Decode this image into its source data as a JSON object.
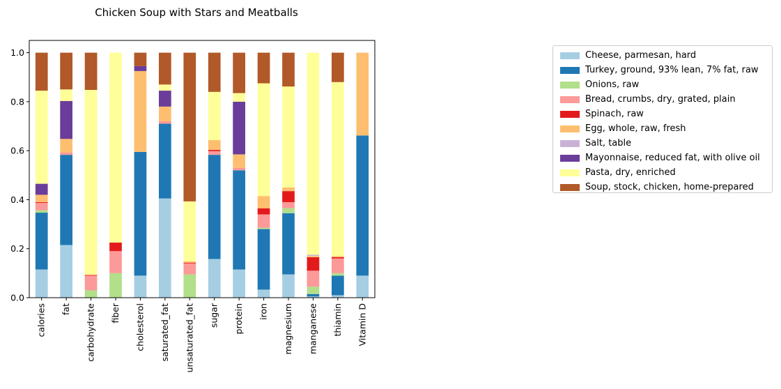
{
  "chart_data": {
    "type": "bar",
    "stacked": true,
    "title": "Chicken Soup with Stars and Meatballs",
    "xlabel": "",
    "ylabel": "",
    "ylim": [
      0,
      1.05
    ],
    "yticks": [
      "0.0",
      "0.2",
      "0.4",
      "0.6",
      "0.8",
      "1.0"
    ],
    "legend_position": "right",
    "categories": [
      "calories",
      "fat",
      "carbohydrate",
      "fiber",
      "cholesterol",
      "saturated_fat",
      "unsaturated_fat",
      "sugar",
      "protein",
      "iron",
      "magnesium",
      "manganese",
      "thiamin",
      "Vitamin D"
    ],
    "series": [
      {
        "name": "Cheese, parmesan, hard",
        "color": "#a6cee3",
        "values": [
          0.115,
          0.215,
          0.0,
          0.0,
          0.09,
          0.405,
          0.0,
          0.158,
          0.115,
          0.033,
          0.095,
          0.005,
          0.01,
          0.09
        ]
      },
      {
        "name": "Turkey, ground, 93% lean, 7% fat, raw",
        "color": "#1f78b4",
        "values": [
          0.232,
          0.368,
          0.0,
          0.0,
          0.505,
          0.305,
          0.0,
          0.425,
          0.405,
          0.247,
          0.25,
          0.01,
          0.08,
          0.572
        ]
      },
      {
        "name": "Onions, raw",
        "color": "#b2df8a",
        "values": [
          0.01,
          0.0,
          0.03,
          0.1,
          0.0,
          0.0,
          0.095,
          0.0,
          0.0,
          0.005,
          0.02,
          0.03,
          0.01,
          0.0
        ]
      },
      {
        "name": "Bread, crumbs, dry, grated, plain",
        "color": "#fb9a99",
        "values": [
          0.03,
          0.01,
          0.06,
          0.09,
          0.0,
          0.01,
          0.045,
          0.015,
          0.01,
          0.055,
          0.025,
          0.065,
          0.06,
          0.0
        ]
      },
      {
        "name": "Spinach, raw",
        "color": "#e31a1c",
        "values": [
          0.003,
          0.0,
          0.003,
          0.035,
          0.0,
          0.0,
          0.003,
          0.005,
          0.0,
          0.025,
          0.045,
          0.055,
          0.005,
          0.0
        ]
      },
      {
        "name": "Egg, whole, raw, fresh",
        "color": "#fdbf6f",
        "values": [
          0.03,
          0.055,
          0.0,
          0.0,
          0.33,
          0.06,
          0.005,
          0.04,
          0.055,
          0.05,
          0.015,
          0.005,
          0.005,
          0.338
        ]
      },
      {
        "name": "Salt, table",
        "color": "#cab2d6",
        "values": [
          0.0,
          0.0,
          0.0,
          0.0,
          0.0,
          0.0,
          0.0,
          0.0,
          0.0,
          0.0,
          0.0,
          0.005,
          0.0,
          0.0
        ]
      },
      {
        "name": "Mayonnaise, reduced fat, with olive oil",
        "color": "#6a3d9a",
        "values": [
          0.045,
          0.155,
          0.0,
          0.0,
          0.02,
          0.065,
          0.0,
          0.0,
          0.215,
          0.0,
          0.0,
          0.0,
          0.0,
          0.0
        ]
      },
      {
        "name": "Pasta, dry, enriched",
        "color": "#ffff99",
        "values": [
          0.38,
          0.047,
          0.755,
          0.775,
          0.0,
          0.025,
          0.245,
          0.197,
          0.035,
          0.46,
          0.412,
          0.825,
          0.71,
          0.0
        ]
      },
      {
        "name": "Soup, stock, chicken, home-prepared",
        "color": "#b15928",
        "values": [
          0.155,
          0.15,
          0.152,
          0.0,
          0.055,
          0.13,
          0.607,
          0.16,
          0.165,
          0.125,
          0.138,
          0.0,
          0.12,
          0.0
        ]
      }
    ]
  }
}
